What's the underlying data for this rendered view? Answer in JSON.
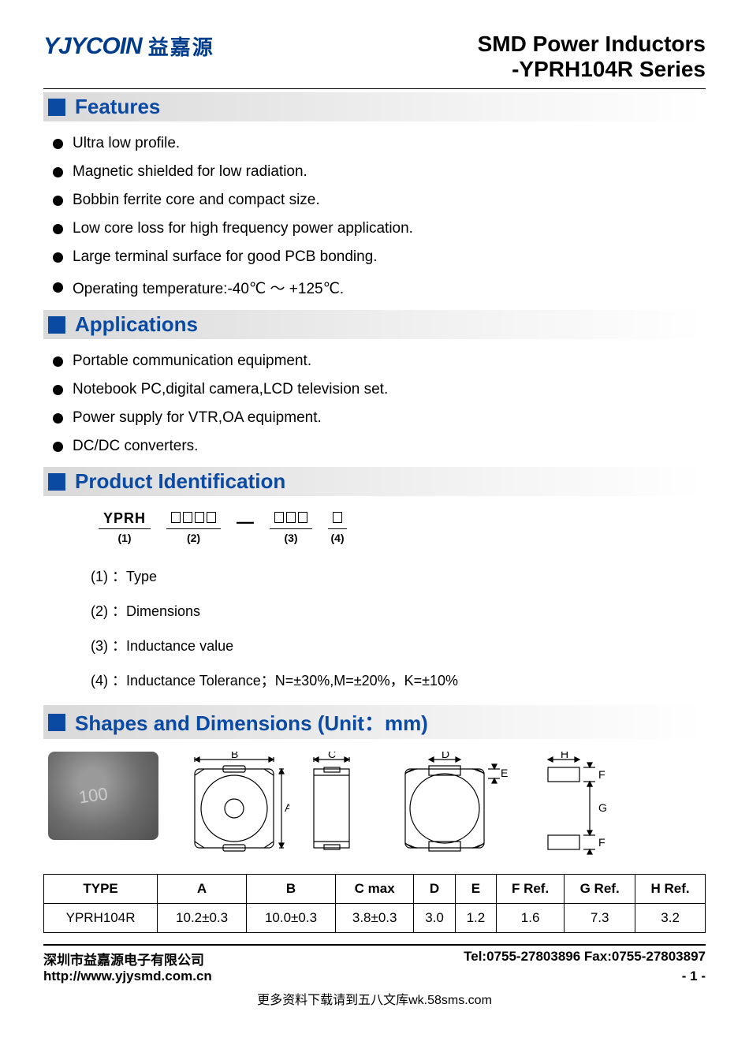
{
  "header": {
    "logo_en": "YJYCOIN",
    "logo_cn": "益嘉源",
    "title_line1": "SMD Power Inductors",
    "title_line2": "-YPRH104R Series"
  },
  "sections": {
    "features": {
      "title": "Features",
      "items": [
        "Ultra low profile.",
        "Magnetic shielded for low radiation.",
        "Bobbin ferrite core and compact size.",
        "Low core loss for high frequency power application.",
        "Large terminal surface for good PCB bonding.",
        "Operating temperature:-40℃ ～ +125℃."
      ]
    },
    "applications": {
      "title": "Applications",
      "items": [
        "Portable communication equipment.",
        "Notebook PC,digital camera,LCD television set.",
        "Power supply for VTR,OA equipment.",
        "DC/DC converters."
      ]
    },
    "product_id": {
      "title": "Product Identification",
      "diagram": {
        "p1_top": "YPRH",
        "p1_bot": "(1)",
        "p2_boxes": 4,
        "p2_bot": "(2)",
        "p3_boxes": 3,
        "p3_bot": "(3)",
        "p4_boxes": 1,
        "p4_bot": "(4)"
      },
      "legend": [
        "(1) ：Type",
        "(2) ：Dimensions",
        "(3) ：Inductance value",
        "(4) ：Inductance Tolerance；N=±30%,M=±20%，K=±10%"
      ]
    },
    "shapes": {
      "title": "Shapes and Dimensions (Unit：mm)",
      "photo_label": "100",
      "dim_labels": {
        "A": "A",
        "B": "B",
        "C": "C",
        "D": "D",
        "E": "E",
        "F": "F",
        "G": "G",
        "H": "H"
      },
      "table": {
        "columns": [
          "TYPE",
          "A",
          "B",
          "C max",
          "D",
          "E",
          "F Ref.",
          "G Ref.",
          "H Ref."
        ],
        "rows": [
          [
            "YPRH104R",
            "10.2±0.3",
            "10.0±0.3",
            "3.8±0.3",
            "3.0",
            "1.2",
            "1.6",
            "7.3",
            "3.2"
          ]
        ]
      }
    }
  },
  "footer": {
    "company": "深圳市益嘉源电子有限公司",
    "contact": "Tel:0755-27803896   Fax:0755-27803897",
    "url": "http://www.yjysmd.com.cn",
    "page": "- 1 -",
    "source_note": "更多资料下载请到五八文库wk.58sms.com"
  },
  "colors": {
    "brand_blue": "#0a4aa3",
    "dark_blue": "#003c8c",
    "header_grad_start": "#d9d9d9"
  }
}
